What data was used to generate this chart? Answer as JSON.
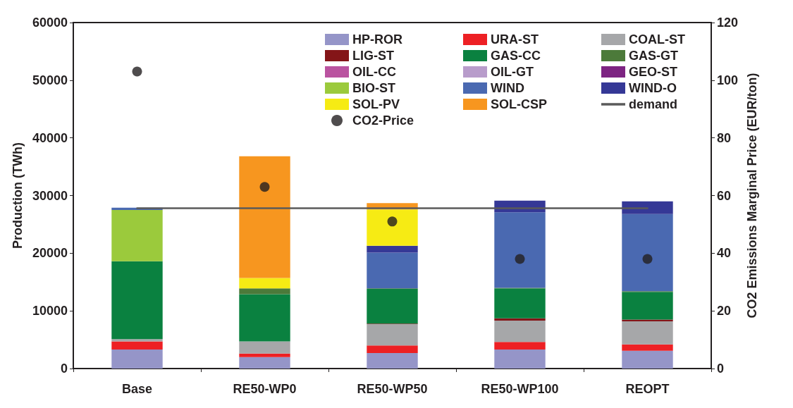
{
  "chart_data": {
    "type": "bar",
    "stacked": true,
    "categories": [
      "Base",
      "RE50-WP0",
      "RE50-WP50",
      "RE50-WP100",
      "REOPT"
    ],
    "ylabel": "Production (TWh)",
    "y2label": "CO2 Emissions Marginal Price (EUR/ton)",
    "ylim": [
      0,
      60000
    ],
    "yticks": [
      0,
      10000,
      20000,
      30000,
      40000,
      50000,
      60000
    ],
    "y2lim": [
      0,
      120
    ],
    "y2ticks": [
      0,
      20,
      40,
      60,
      80,
      100,
      120
    ],
    "legend": "top right",
    "grid": false,
    "series": [
      {
        "name": "HP-ROR",
        "color": "#9595c8",
        "values": [
          3300,
          2000,
          2700,
          3300,
          3100
        ]
      },
      {
        "name": "URA-ST",
        "color": "#ed2024",
        "values": [
          1400,
          600,
          1300,
          1300,
          1100
        ]
      },
      {
        "name": "COAL-ST",
        "color": "#a6a7a9",
        "values": [
          400,
          2100,
          3700,
          3700,
          4000
        ]
      },
      {
        "name": "LIG-ST",
        "color": "#841518",
        "values": [
          0,
          0,
          100,
          400,
          300
        ]
      },
      {
        "name": "GAS-CC",
        "color": "#0a8140",
        "values": [
          13500,
          8200,
          6000,
          5200,
          4800
        ]
      },
      {
        "name": "GAS-GT",
        "color": "#4c7a3a",
        "values": [
          0,
          1000,
          100,
          100,
          100
        ]
      },
      {
        "name": "OIL-CC",
        "color": "#ba53a0",
        "values": [
          0,
          0,
          0,
          0,
          0
        ]
      },
      {
        "name": "OIL-GT",
        "color": "#b89ccb",
        "values": [
          0,
          0,
          0,
          0,
          0
        ]
      },
      {
        "name": "GEO-ST",
        "color": "#7d2482",
        "values": [
          0,
          0,
          0,
          0,
          0
        ]
      },
      {
        "name": "BIO-ST",
        "color": "#9bca3c",
        "values": [
          8900,
          0,
          0,
          0,
          0
        ]
      },
      {
        "name": "WIND",
        "color": "#4a69b1",
        "values": [
          400,
          0,
          6200,
          13100,
          13400
        ]
      },
      {
        "name": "WIND-O",
        "color": "#353896",
        "values": [
          0,
          0,
          1200,
          2000,
          2200
        ]
      },
      {
        "name": "SOL-PV",
        "color": "#f6eb14",
        "values": [
          0,
          1800,
          6300,
          0,
          0
        ]
      },
      {
        "name": "SOL-CSP",
        "color": "#f7961f",
        "values": [
          0,
          21100,
          1100,
          0,
          0
        ]
      },
      {
        "name": "demand",
        "type": "line",
        "color": "#5a5a5a",
        "values": [
          27800,
          27800,
          27800,
          27800,
          27800
        ]
      },
      {
        "name": "CO2-Price",
        "type": "scatter",
        "axis": "y2",
        "color": "#231f20",
        "values": [
          103,
          63,
          51,
          38,
          38
        ]
      }
    ]
  }
}
